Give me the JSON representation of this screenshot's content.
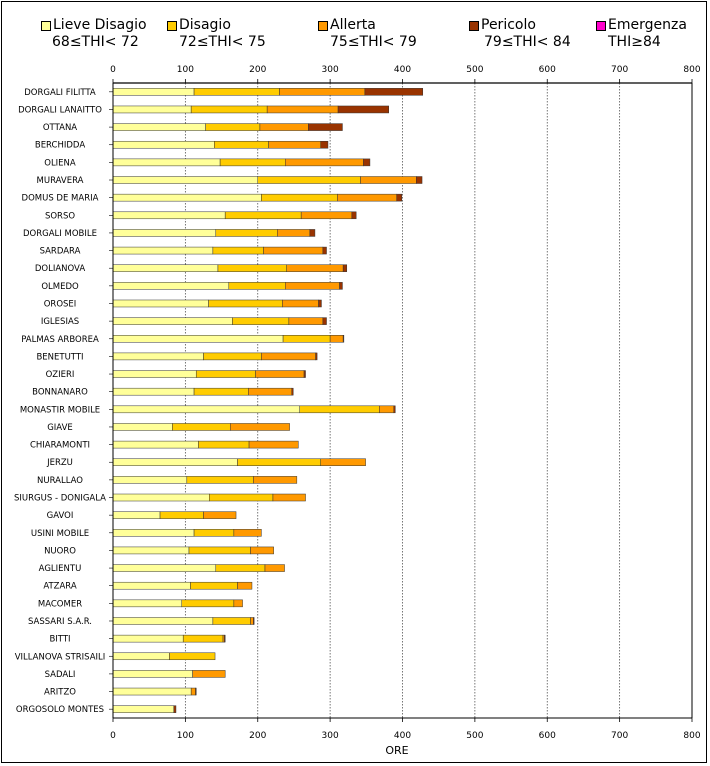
{
  "chart_data": {
    "type": "bar",
    "orientation": "horizontal",
    "stacked": true,
    "title": "",
    "xlabel": "ORE",
    "ylabel": "",
    "xlim": [
      0,
      800
    ],
    "xticks": [
      "0",
      "100",
      "200",
      "300",
      "400",
      "500",
      "600",
      "700",
      "800"
    ],
    "grid": true,
    "legend_position": "top",
    "categories": [
      "DORGALI FILITTA",
      "DORGALI LANAITTO",
      "OTTANA",
      "BERCHIDDA",
      "OLIENA",
      "MURAVERA",
      "DOMUS DE MARIA",
      "SORSO",
      "DORGALI MOBILE",
      "SARDARA",
      "DOLIANOVA",
      "OLMEDO",
      "OROSEI",
      "IGLESIAS",
      "PALMAS ARBOREA",
      "BENETUTTI",
      "OZIERI",
      "BONNANARO",
      "MONASTIR MOBILE",
      "GIAVE",
      "CHIARAMONTI",
      "JERZU",
      "NURALLAO",
      "SIURGUS - DONIGALA",
      "GAVOI",
      "USINI MOBILE",
      "NUORO",
      "AGLIENTU",
      "ATZARA",
      "MACOMER",
      "SASSARI S.A.R.",
      "BITTI",
      "VILLANOVA STRISAILI",
      "SADALI",
      "ARITZO",
      "ORGOSOLO MONTES"
    ],
    "series": [
      {
        "name": "Lieve Disagio",
        "range": "68≤THI< 72",
        "color": "#ffff99",
        "values": [
          112,
          108,
          128,
          140,
          148,
          200,
          205,
          155,
          142,
          138,
          145,
          160,
          132,
          165,
          235,
          125,
          115,
          112,
          258,
          82,
          118,
          172,
          102,
          133,
          65,
          112,
          105,
          142,
          107,
          95,
          138,
          97,
          78,
          110,
          108,
          84
        ]
      },
      {
        "name": "Disagio",
        "range": "72≤THI< 75",
        "color": "#ffcc00",
        "values": [
          118,
          105,
          75,
          75,
          90,
          142,
          105,
          105,
          85,
          70,
          95,
          78,
          102,
          78,
          65,
          80,
          82,
          75,
          110,
          80,
          70,
          115,
          92,
          88,
          60,
          55,
          85,
          68,
          65,
          72,
          52,
          55,
          63,
          0,
          0,
          0
        ]
      },
      {
        "name": "Allerta",
        "range": "75≤THI< 79",
        "color": "#ff9900",
        "values": [
          118,
          98,
          67,
          72,
          108,
          77,
          82,
          70,
          45,
          82,
          78,
          75,
          50,
          47,
          18,
          75,
          67,
          60,
          20,
          82,
          68,
          62,
          60,
          45,
          45,
          38,
          32,
          27,
          20,
          12,
          4,
          2,
          0,
          45,
          6,
          0
        ]
      },
      {
        "name": "Pericolo",
        "range": "79≤THI< 84",
        "color": "#993300",
        "values": [
          80,
          70,
          47,
          10,
          9,
          8,
          7,
          6,
          7,
          5,
          5,
          4,
          4,
          5,
          1,
          2,
          2,
          2,
          2,
          0,
          0,
          0,
          0,
          0,
          0,
          0,
          0,
          0,
          0,
          0,
          1,
          1,
          0,
          0,
          1,
          3
        ]
      },
      {
        "name": "Emergenza",
        "range": "THI≥84",
        "color": "#ff00cc",
        "values": [
          0,
          0,
          0,
          0,
          0,
          0,
          0,
          0,
          0,
          0,
          0,
          0,
          0,
          0,
          0,
          0,
          0,
          0,
          0,
          0,
          0,
          0,
          0,
          0,
          0,
          0,
          0,
          0,
          0,
          0,
          0,
          0,
          0,
          0,
          0,
          0
        ]
      }
    ]
  }
}
